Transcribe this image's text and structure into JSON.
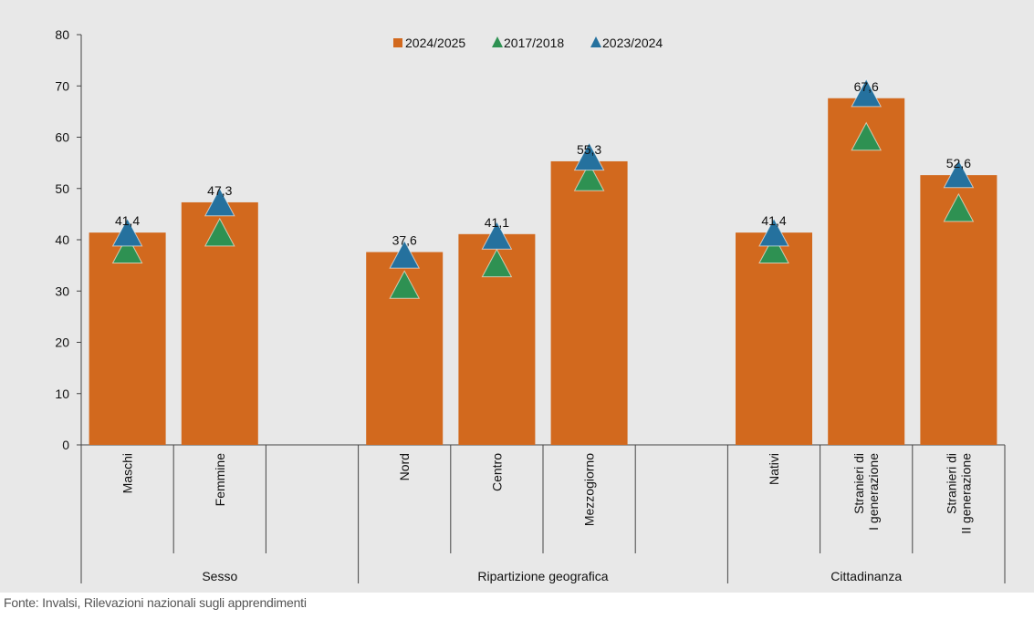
{
  "chart_data": {
    "type": "bar",
    "title": "",
    "xlabel": "",
    "ylabel": "",
    "ylim": [
      0,
      80
    ],
    "yticks": [
      0,
      10,
      20,
      30,
      40,
      50,
      60,
      70,
      80
    ],
    "grid": false,
    "legend_position": "top-center",
    "categories": [
      [
        "Maschi"
      ],
      [
        "Femmine"
      ],
      [],
      [
        "Nord"
      ],
      [
        "Centro"
      ],
      [
        "Mezzogiorno"
      ],
      [],
      [
        "Nativi"
      ],
      [
        "Stranieri di",
        "I generazione"
      ],
      [
        "Stranieri di",
        "II generazione"
      ]
    ],
    "groups": [
      {
        "label": "Sesso",
        "span": [
          0,
          2
        ]
      },
      {
        "label": "Ripartizione geografica",
        "span": [
          3,
          5
        ]
      },
      {
        "label": "Cittadinanza",
        "span": [
          7,
          9
        ]
      }
    ],
    "series": [
      {
        "name": "2024/2025",
        "kind": "bar",
        "color": "#d2691e",
        "values": [
          41.4,
          47.3,
          null,
          37.6,
          41.1,
          55.3,
          null,
          41.4,
          67.6,
          52.6
        ]
      },
      {
        "name": "2017/2018",
        "kind": "marker",
        "color": "#2e9152",
        "values": [
          37.5,
          40.8,
          null,
          30.6,
          34.8,
          51.6,
          null,
          37.5,
          59.5,
          45.6
        ]
      },
      {
        "name": "2023/2024",
        "kind": "marker",
        "color": "#25719e",
        "values": [
          40.8,
          46.7,
          null,
          36.5,
          40.2,
          55.6,
          null,
          40.8,
          68.0,
          52.2
        ]
      }
    ],
    "data_labels": [
      "41,4",
      "47,3",
      "",
      "37,6",
      "41,1",
      "55,3",
      "",
      "41,4",
      "67,6",
      "52,6"
    ]
  },
  "source": "Fonte: Invalsi, Rilevazioni nazionali sugli apprendimenti"
}
